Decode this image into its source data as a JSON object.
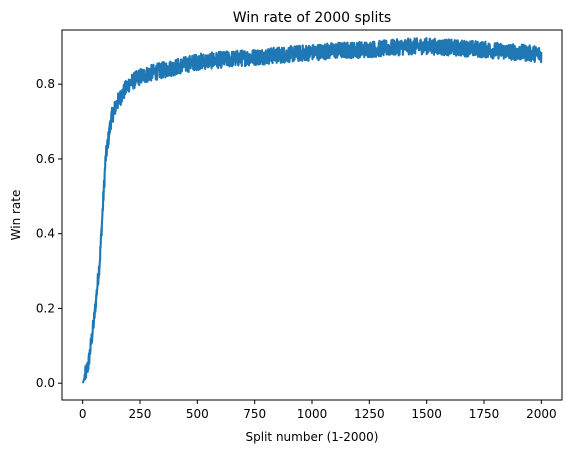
{
  "chart_data": {
    "type": "line",
    "title": "Win rate of 2000 splits",
    "xlabel": "Split number (1-2000)",
    "ylabel": "Win rate",
    "xlim": [
      -90,
      2090
    ],
    "ylim": [
      -0.045,
      0.945
    ],
    "xticks": [
      0,
      250,
      500,
      750,
      1000,
      1250,
      1500,
      1750,
      2000
    ],
    "xtick_labels": [
      "0",
      "250",
      "500",
      "750",
      "1000",
      "1250",
      "1500",
      "1750",
      "2000"
    ],
    "yticks": [
      0.0,
      0.2,
      0.4,
      0.6,
      0.8
    ],
    "ytick_labels": [
      "0.0",
      "0.2",
      "0.4",
      "0.6",
      "0.8"
    ],
    "grid": false,
    "series": [
      {
        "color": "#1f77b4",
        "x": [
          1,
          25,
          50,
          75,
          100,
          125,
          150,
          200,
          250,
          300,
          400,
          500,
          600,
          700,
          800,
          900,
          1000,
          1100,
          1200,
          1300,
          1400,
          1500,
          1600,
          1700,
          1800,
          1900,
          2000
        ],
        "y": [
          0.0,
          0.05,
          0.17,
          0.33,
          0.6,
          0.71,
          0.75,
          0.8,
          0.82,
          0.83,
          0.845,
          0.86,
          0.865,
          0.87,
          0.875,
          0.88,
          0.885,
          0.89,
          0.892,
          0.895,
          0.9,
          0.902,
          0.898,
          0.895,
          0.89,
          0.885,
          0.88
        ],
        "noise_amplitude": 0.022
      }
    ]
  }
}
